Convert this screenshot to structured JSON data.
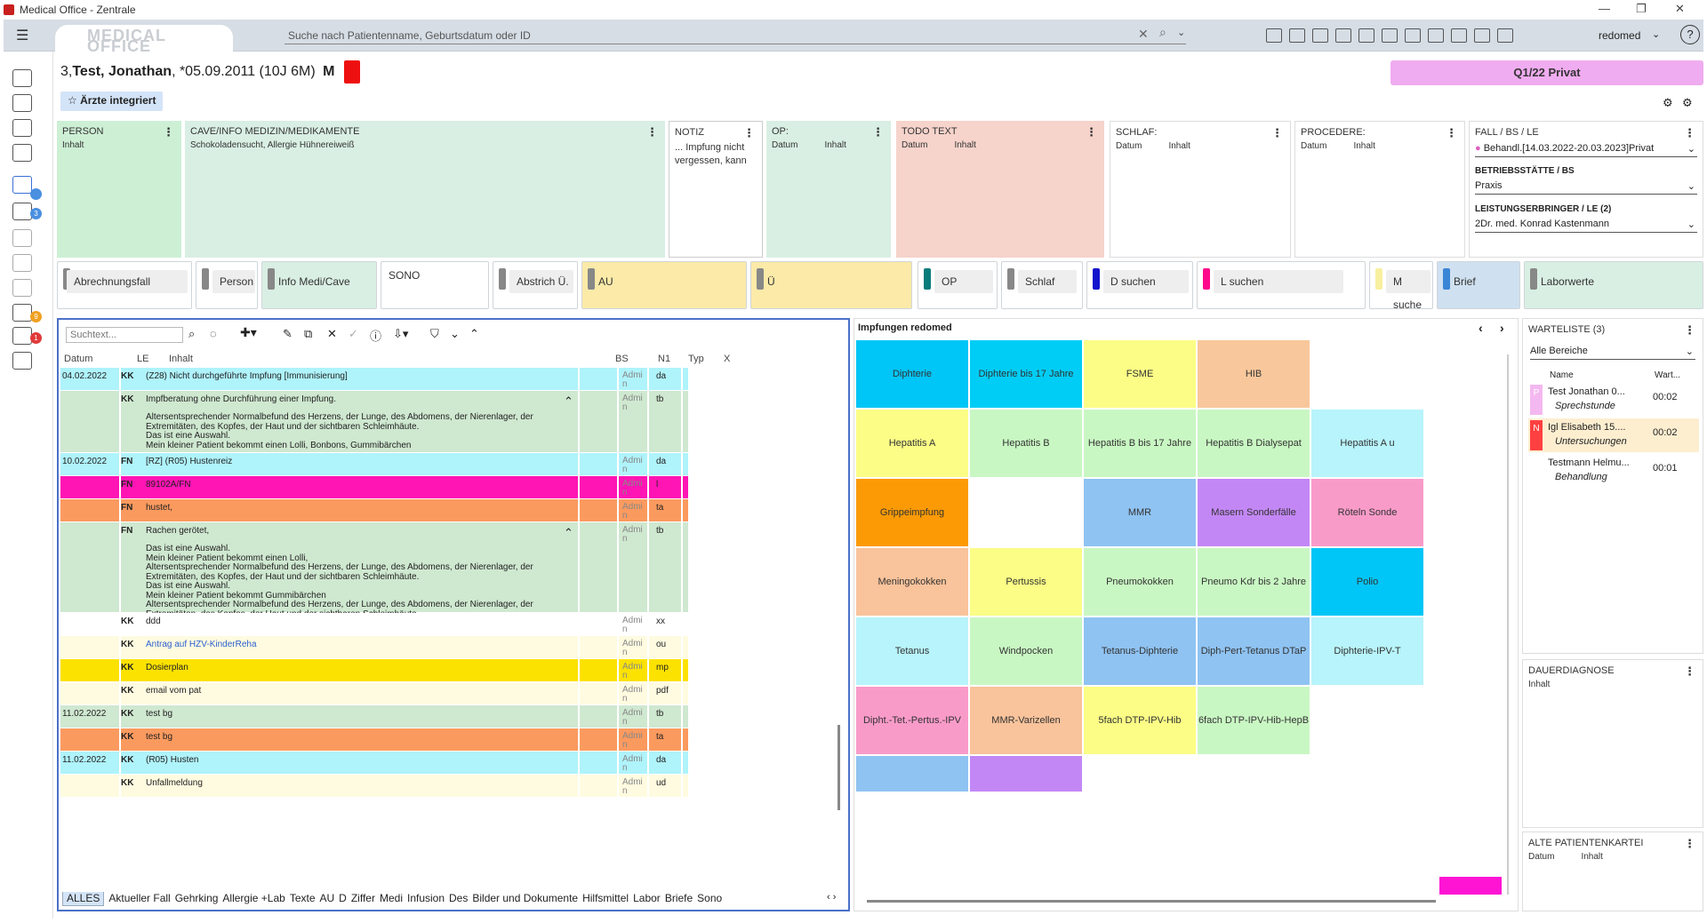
{
  "window": {
    "title": "Medical Office - Zentrale",
    "logo_text": "MEDICAL OFFICE"
  },
  "search": {
    "placeholder": "Suche nach Patientenname, Geburtsdatum oder ID"
  },
  "user": {
    "name": "redomed"
  },
  "patient": {
    "prefix": "3,",
    "name": "Test, Jonathan",
    "dob": ", *05.09.2011 (10J 6M)",
    "sex": "M",
    "insurance": "Q1/22 Privat",
    "tag": "Ärzte integriert"
  },
  "panels": {
    "person": {
      "title": "PERSON",
      "sub": "Inhalt"
    },
    "cave": {
      "title": "CAVE/INFO MEDIZIN/MEDIKAMENTE",
      "text": "Schokoladensucht, Allergie Hühnereiweiß"
    },
    "notiz": {
      "title": "NOTIZ",
      "text": "... Impfung nicht vergessen, kann"
    },
    "op": {
      "title": "OP:",
      "c1": "Datum",
      "c2": "Inhalt"
    },
    "todo": {
      "title": "TODO TEXT",
      "c1": "Datum",
      "c2": "Inhalt"
    },
    "schlaf": {
      "title": "SCHLAF:",
      "c1": "Datum",
      "c2": "Inhalt"
    },
    "procedere": {
      "title": "PROCEDERE:",
      "c1": "Datum",
      "c2": "Inhalt"
    },
    "fall": {
      "title": "FALL / BS / LE",
      "case": "Behandl.[14.03.2022-20.03.2023]Privat",
      "bs_label": "BETRIEBSSTÄTTE / BS",
      "bs": "Praxis",
      "le_label": "LEISTUNGSERBRINGER / LE (2)",
      "le": "2Dr. med. Konrad Kastenmann"
    }
  },
  "buttons": [
    "Abrechnungsfall",
    "Person",
    "Info Medi/Cave",
    "SONO",
    "Abstrich Ü.",
    "AU",
    "Ü",
    "OP",
    "Schlaf",
    "D suchen",
    "L suchen",
    "M suche",
    "Brief",
    "Laborwerte"
  ],
  "colors": {
    "green": "#cdf0d5",
    "teal": "#d9efe3",
    "todo": "#f6d3cb",
    "yellow": "#fbeaa8",
    "blue": "#cfe0f0",
    "magenta": "#ff14b4",
    "orange": "#fb9a5f",
    "cyan": "#aff3fb",
    "gold": "#fce200"
  },
  "list": {
    "search_placeholder": "Suchtext...",
    "headers": [
      "Datum",
      "LE",
      "Inhalt",
      "BS",
      "N1",
      "Typ",
      "X"
    ],
    "rows": [
      {
        "date": "04.02.2022",
        "le": "KK",
        "text": "(Z28) Nicht durchgeführte Impfung [Immunisierung]",
        "n1": "Admi n",
        "typ": "da"
      },
      {
        "date": "",
        "le": "KK",
        "text": "Impfberatung ohne Durchführung einer Impfung.",
        "extra": [
          "Altersentsprechender Normalbefund des Herzens, der Lunge, des Abdomens, der Nierenlager, der",
          "Extremitäten, des Kopfes, der Haut und der sichtbaren Schleimhäute.",
          "Das ist eine Auswahl.",
          "Mein kleiner Patient bekommt einen Lolli, Bonbons, Gummibärchen"
        ],
        "n1": "Admi n",
        "typ": "tb"
      },
      {
        "date": "10.02.2022",
        "le": "FN",
        "text": "[RZ] (R05) Hustenreiz",
        "n1": "Admi n",
        "typ": "da"
      },
      {
        "date": "",
        "le": "FN",
        "text": "89102A/FN",
        "n1": "Admi n",
        "typ": "l"
      },
      {
        "date": "",
        "le": "FN",
        "text": "hustet,",
        "n1": "Admi n",
        "typ": "ta"
      },
      {
        "date": "",
        "le": "FN",
        "text": "Rachen gerötet,",
        "extra": [
          "Das ist eine Auswahl.",
          "Mein kleiner Patient bekommt einen Lolli,",
          "Altersentsprechender Normalbefund des Herzens, der Lunge, des Abdomens, der Nierenlager, der",
          "Extremitäten, des Kopfes, der Haut und der sichtbaren Schleimhäute.",
          "Das ist eine Auswahl.",
          "Mein kleiner Patient bekommt Gummibärchen",
          "Altersentsprechender Normalbefund des Herzens, der Lunge, des Abdomens, der Nierenlager, der",
          "Extremitäten, des Kopfes, der Haut und der sichtbaren Schleimhäute."
        ],
        "n1": "Admi n",
        "typ": "tb"
      },
      {
        "date": "",
        "le": "KK",
        "text": "ddd",
        "n1": "Admi n",
        "typ": "xx"
      },
      {
        "date": "",
        "le": "KK",
        "text": "Antrag auf HZV-KinderReha",
        "n1": "Admi n",
        "typ": "ou"
      },
      {
        "date": "",
        "le": "KK",
        "text": "Dosierplan",
        "n1": "Admi n",
        "typ": "mp"
      },
      {
        "date": "",
        "le": "KK",
        "text": "email vom pat",
        "n1": "Admi n",
        "typ": "pdf"
      },
      {
        "date": "11.02.2022",
        "le": "KK",
        "text": "test bg",
        "n1": "Admi n",
        "typ": "tb"
      },
      {
        "date": "",
        "le": "KK",
        "text": "test bg",
        "n1": "Admi n",
        "typ": "ta"
      },
      {
        "date": "11.02.2022",
        "le": "KK",
        "text": "(R05) Husten",
        "n1": "Admi n",
        "typ": "da"
      },
      {
        "date": "",
        "le": "KK",
        "text": "Unfallmeldung",
        "n1": "Admi n",
        "typ": "ud"
      }
    ],
    "tabs": [
      "ALLES",
      "Aktueller Fall",
      "Gehrking",
      "Allergie +Lab",
      "Texte",
      "AU",
      "D",
      "Ziffer",
      "Medi",
      "Infusion",
      "Des",
      "Bilder und Dokumente",
      "Hilfsmittel",
      "Labor",
      "Briefe",
      "Sono"
    ]
  },
  "vacc": {
    "title": "Impfungen redomed",
    "tiles": [
      "Diphterie",
      "Diphterie bis 17 Jahre",
      "FSME",
      "HIB",
      "Hepatitis A",
      "Hepatitis B",
      "Hepatitis B bis 17 Jahre",
      "Hepatitis B Dialysepat",
      "Hepatitis A u",
      "Grippeimpfung",
      "MMR",
      "Masern Sonderfälle",
      "Röteln Sonde",
      "Meningokokken",
      "Pertussis",
      "Pneumokokken",
      "Pneumo Kdr bis 2 Jahre",
      "Polio",
      "Tetanus",
      "Windpocken",
      "Tetanus-Diphterie",
      "Diph-Pert-Tetanus DTaP",
      "Diphterie-IPV-T",
      "Dipht.-Tet.-Pertus.-IPV",
      "MMR-Varizellen",
      "5fach DTP-IPV-Hib",
      "6fach DTP-IPV-Hib-HepB"
    ]
  },
  "waitlist": {
    "title": "WARTELISTE (3)",
    "filter": "Alle Bereiche",
    "col_name": "Name",
    "col_wait": "Wart...",
    "items": [
      {
        "badge": "P",
        "name": "Test Jonathan 0...",
        "sub": "Sprechstunde",
        "time": "00:02"
      },
      {
        "badge": "N",
        "name": "Igl Elisabeth 15....",
        "sub": "Untersuchungen",
        "time": "00:02"
      },
      {
        "badge": "",
        "name": "Testmann Helmu...",
        "sub": "Behandlung",
        "time": "00:01"
      }
    ]
  },
  "dauer": {
    "title": "DAUERDIAGNOSE",
    "sub": "Inhalt"
  },
  "alte": {
    "title": "ALTE PATIENTENKARTEI",
    "c1": "Datum",
    "c2": "Inhalt"
  }
}
